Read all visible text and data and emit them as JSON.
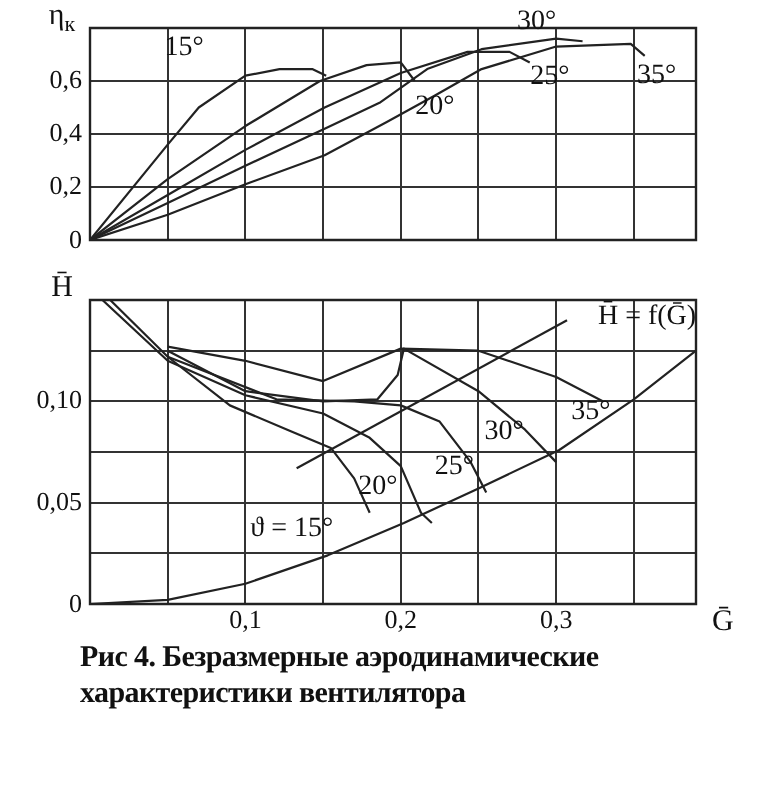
{
  "chart_data": [
    {
      "type": "line",
      "ylabel": "η$_{к}$",
      "tick_labels": "y",
      "grid": true,
      "xlim": [
        0,
        0.39
      ],
      "xticks": [
        {
          "value": 0,
          "label": null
        },
        {
          "value": 0.05,
          "label": null
        },
        {
          "value": 0.1,
          "label": null
        },
        {
          "value": 0.15,
          "label": null
        },
        {
          "value": 0.2,
          "label": null
        },
        {
          "value": 0.25,
          "label": null
        },
        {
          "value": 0.3,
          "label": null
        },
        {
          "value": 0.35,
          "label": null
        }
      ],
      "ylim": [
        0,
        0.8
      ],
      "yticks": [
        0,
        {
          "value": 0.2,
          "label": "0,2"
        },
        {
          "value": 0.4,
          "label": "0,4"
        },
        {
          "value": 0.6,
          "label": "0,6"
        },
        {
          "value": 0.8,
          "label": null
        }
      ],
      "series": [
        {
          "name": "15°",
          "color": "#222222",
          "x": [
            0,
            0.05,
            0.07,
            0.1,
            0.122,
            0.143,
            0.152
          ],
          "values": [
            0,
            0.36,
            0.5,
            0.62,
            0.645,
            0.645,
            0.62
          ]
        },
        {
          "name": "20°",
          "color": "#222222",
          "x": [
            0,
            0.05,
            0.1,
            0.148,
            0.178,
            0.2,
            0.209
          ],
          "values": [
            0,
            0.23,
            0.43,
            0.6,
            0.66,
            0.67,
            0.6
          ]
        },
        {
          "name": "25°",
          "color": "#222222",
          "x": [
            0,
            0.05,
            0.1,
            0.151,
            0.2,
            0.243,
            0.27,
            0.283
          ],
          "values": [
            0,
            0.17,
            0.34,
            0.5,
            0.63,
            0.71,
            0.71,
            0.67
          ]
        },
        {
          "name": "30°",
          "color": "#222222",
          "x": [
            0,
            0.05,
            0.1,
            0.151,
            0.187,
            0.217,
            0.252,
            0.3,
            0.317
          ],
          "values": [
            0,
            0.14,
            0.28,
            0.42,
            0.52,
            0.645,
            0.72,
            0.76,
            0.75
          ]
        },
        {
          "name": "35°",
          "color": "#222222",
          "x": [
            0,
            0.05,
            0.1,
            0.151,
            0.191,
            0.222,
            0.252,
            0.3,
            0.348,
            0.357
          ],
          "values": [
            0,
            0.095,
            0.21,
            0.32,
            0.445,
            0.545,
            0.645,
            0.73,
            0.74,
            0.695
          ]
        }
      ]
    },
    {
      "type": "line",
      "ylabel": "H̄",
      "xlabel": "Ḡ",
      "grid": true,
      "xlim": [
        0,
        0.39
      ],
      "xticks": [
        {
          "value": 0,
          "label": null
        },
        {
          "value": 0.05,
          "label": null
        },
        {
          "value": 0.1,
          "label": "0,1"
        },
        {
          "value": 0.15,
          "label": null
        },
        {
          "value": 0.2,
          "label": "0,2"
        },
        {
          "value": 0.25,
          "label": null
        },
        {
          "value": 0.3,
          "label": "0,3"
        },
        {
          "value": 0.35,
          "label": null
        }
      ],
      "ylim": [
        0,
        0.15
      ],
      "yticks": [
        0,
        {
          "value": 0.025,
          "label": null
        },
        {
          "value": 0.05,
          "label": "0,05"
        },
        {
          "value": 0.075,
          "label": null
        },
        {
          "value": 0.1,
          "label": "0,10"
        },
        {
          "value": 0.125,
          "label": null
        },
        {
          "value": 0.15,
          "label": null
        }
      ],
      "series": [
        {
          "name": "ϑ = 15°",
          "color": "#222222",
          "x": [
            0.013,
            0.05,
            0.09,
            0.13,
            0.155,
            0.17,
            0.18
          ],
          "values": [
            0.15,
            0.122,
            0.098,
            0.085,
            0.077,
            0.062,
            0.045
          ]
        },
        {
          "name": "20°",
          "color": "#222222",
          "x": [
            0.008,
            0.05,
            0.1,
            0.15,
            0.18,
            0.2,
            0.213,
            0.22
          ],
          "values": [
            0.15,
            0.12,
            0.103,
            0.094,
            0.082,
            0.068,
            0.045,
            0.04
          ]
        },
        {
          "name": "25°",
          "color": "#222222",
          "x": [
            0.05,
            0.12,
            0.17,
            0.2,
            0.225,
            0.245,
            0.255
          ],
          "values": [
            0.122,
            0.101,
            0.1,
            0.098,
            0.09,
            0.07,
            0.055
          ]
        },
        {
          "name": "30°",
          "color": "#222222",
          "x": [
            0.05,
            0.1,
            0.15,
            0.185,
            0.198,
            0.202,
            0.25,
            0.28,
            0.3
          ],
          "values": [
            0.125,
            0.105,
            0.1,
            0.101,
            0.113,
            0.126,
            0.105,
            0.086,
            0.07
          ]
        },
        {
          "name": "35°",
          "color": "#222222",
          "x": [
            0.05,
            0.1,
            0.15,
            0.2,
            0.25,
            0.3,
            0.33
          ],
          "values": [
            0.127,
            0.12,
            0.11,
            0.126,
            0.125,
            0.112,
            0.1
          ]
        },
        {
          "name": "H̄ = f(Ḡ)",
          "color": "#222222",
          "x": [
            0.133,
            0.307
          ],
          "values": [
            0.067,
            0.14
          ]
        },
        {
          "color": "#222222",
          "x": [
            0,
            0.05,
            0.1,
            0.153,
            0.202,
            0.25,
            0.302,
            0.35,
            0.39
          ],
          "values": [
            0,
            0.002,
            0.01,
            0.024,
            0.04,
            0.057,
            0.076,
            0.101,
            0.125
          ]
        }
      ],
      "annotations": [
        "Рис 4. Безразмерные аэродинамические характеристики вентилятора"
      ]
    }
  ]
}
